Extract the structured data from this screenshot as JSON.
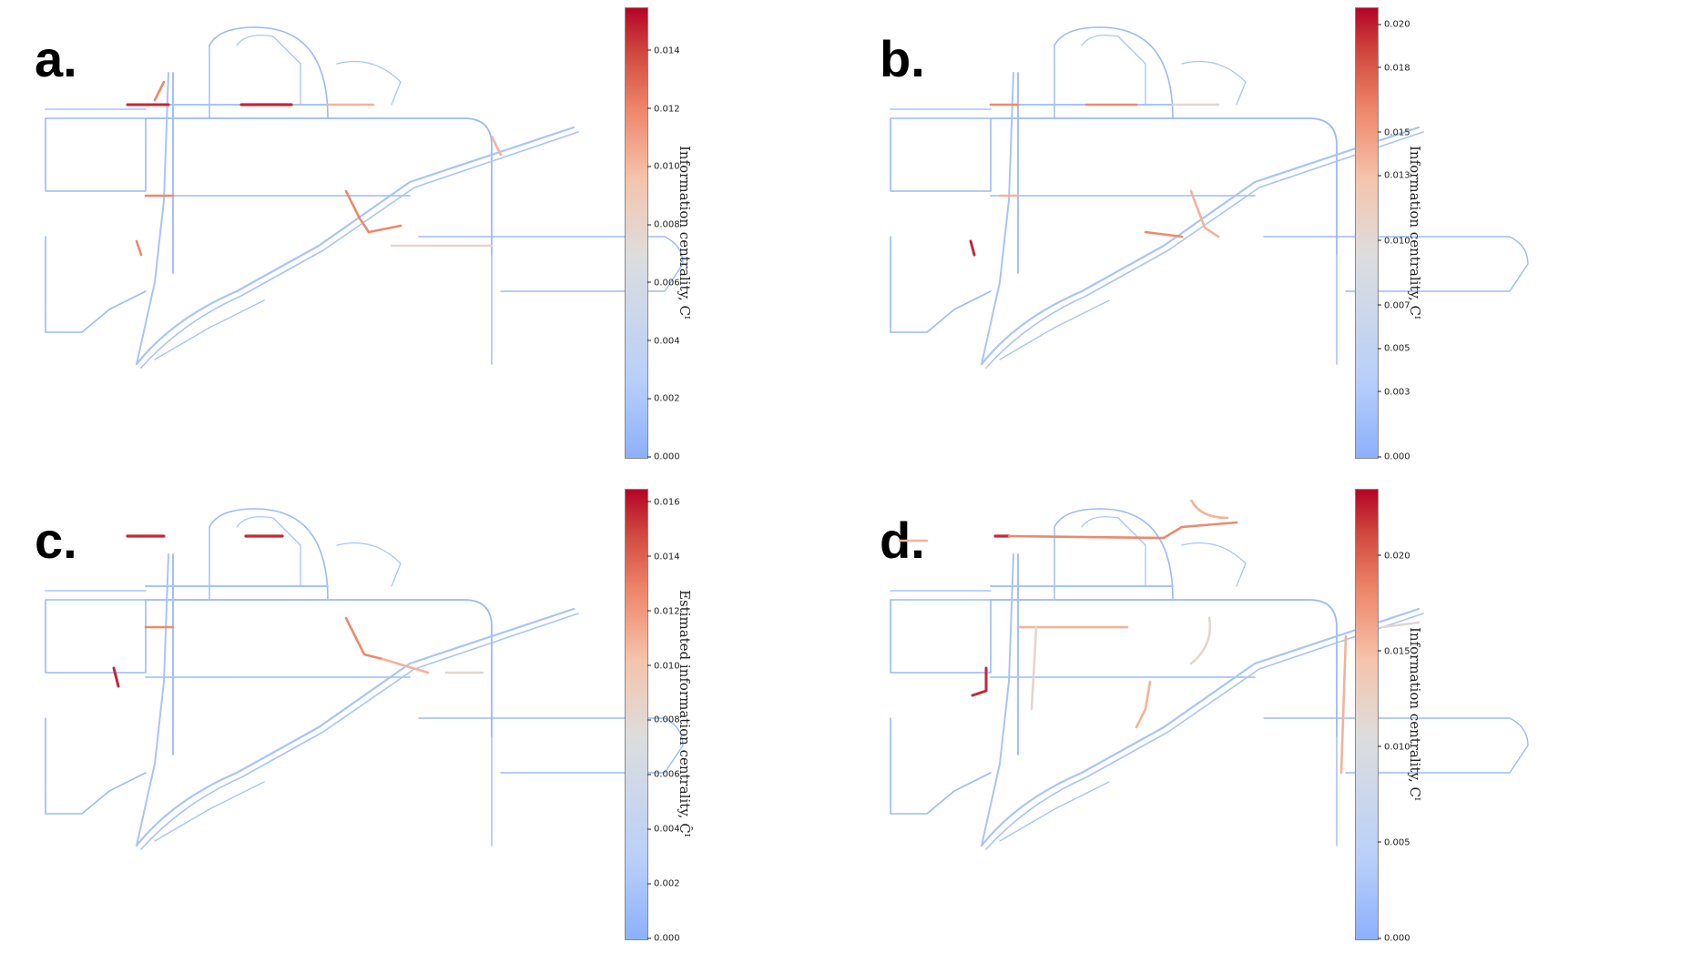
{
  "panels": [
    {
      "id": "a",
      "letter": "a.",
      "colorbar": {
        "label": "Information centrality, Cᴵ",
        "ticks": [
          "0.000",
          "0.002",
          "0.004",
          "0.006",
          "0.008",
          "0.010",
          "0.012",
          "0.014"
        ],
        "max": 0.0155
      },
      "network": "dense"
    },
    {
      "id": "b",
      "letter": "b.",
      "colorbar": {
        "label": "Information centrality, Cᴵ",
        "ticks": [
          "0.000",
          "0.003",
          "0.005",
          "0.007",
          "0.010",
          "0.013",
          "0.015",
          "0.018",
          "0.020"
        ],
        "max": 0.0208
      },
      "network": "medium"
    },
    {
      "id": "c",
      "letter": "c.",
      "colorbar": {
        "label": "Estimated information centrality, Ĉᴵ",
        "ticks": [
          "0.000",
          "0.002",
          "0.004",
          "0.006",
          "0.008",
          "0.010",
          "0.012",
          "0.014",
          "0.016"
        ],
        "max": 0.0165
      },
      "network": "medium"
    },
    {
      "id": "d",
      "letter": "d.",
      "colorbar": {
        "label": "Information centrality, Cᴵ",
        "ticks": [
          "0.000",
          "0.005",
          "0.010",
          "0.015",
          "0.020"
        ],
        "max": 0.0235
      },
      "network": "sparse"
    }
  ],
  "colors": {
    "low": "#8db0fe",
    "mid": "#dddddd",
    "high": "#b40426"
  }
}
